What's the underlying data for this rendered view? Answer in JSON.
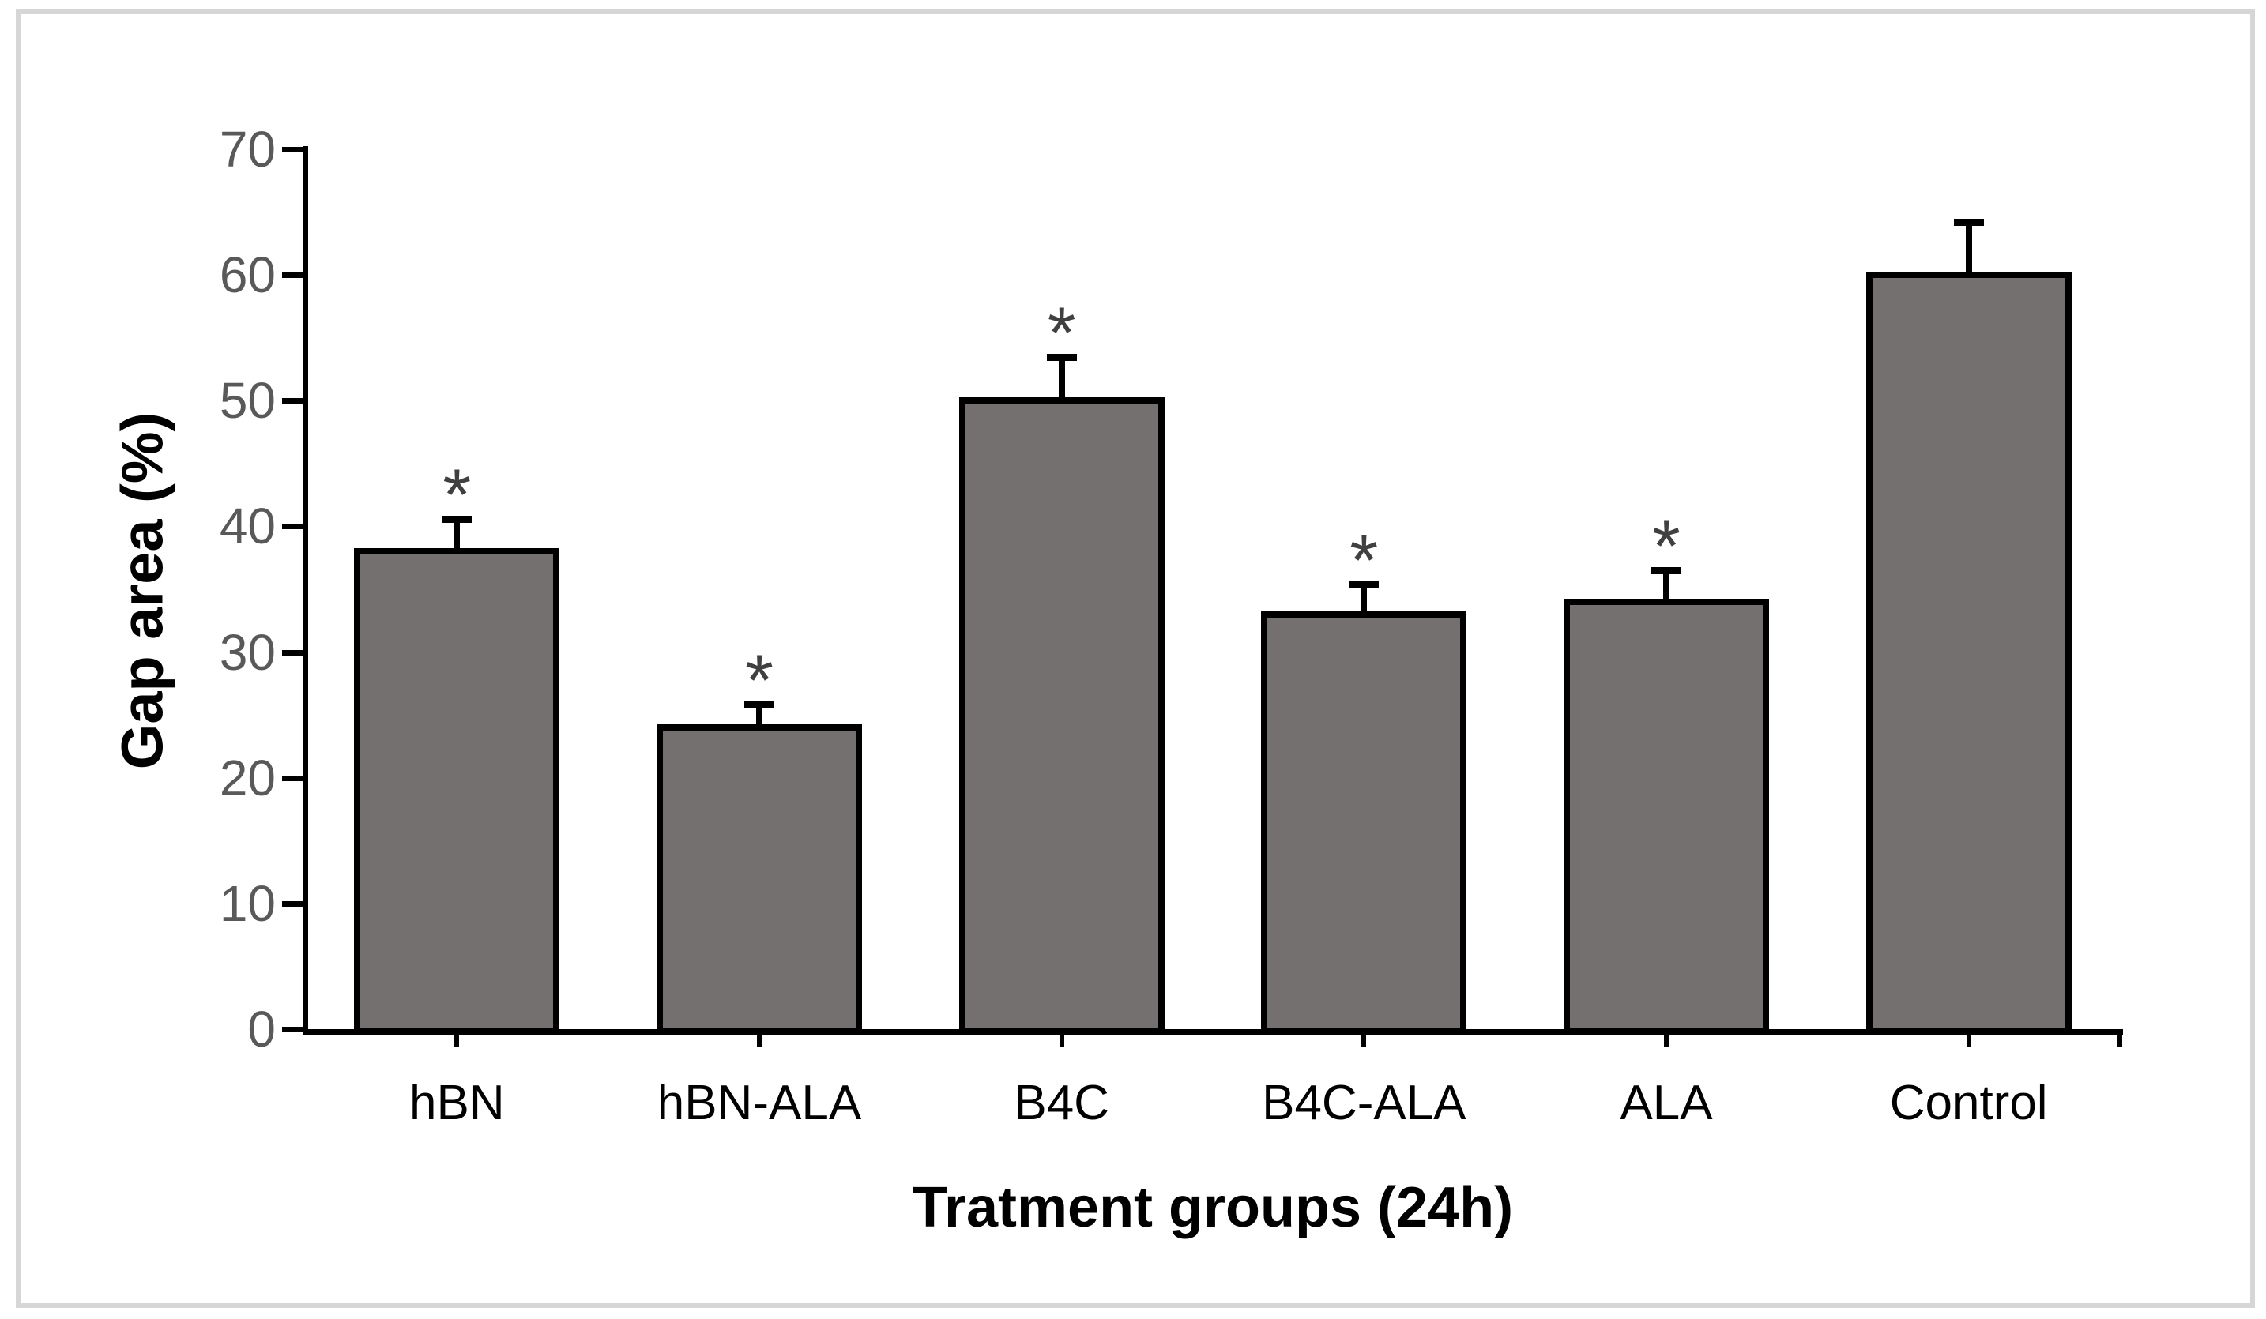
{
  "page": {
    "background": "#ffffff",
    "frame_color": "#d6d6d6"
  },
  "chart_data": {
    "type": "bar",
    "title": "",
    "categories": [
      "hBN",
      "hBN-ALA",
      "B4C",
      "B4C-ALA",
      "ALA",
      "Control"
    ],
    "values": [
      38,
      24,
      50,
      33,
      34,
      60
    ],
    "error_plus": [
      2.6,
      1.8,
      3.5,
      2.4,
      2.5,
      4.2
    ],
    "significance": [
      "*",
      "*",
      "*",
      "*",
      "*",
      ""
    ],
    "xlabel": "Tratment groups (24h)",
    "ylabel": "Gap area (%)",
    "ylim": [
      0,
      70
    ],
    "yticks": [
      0,
      10,
      20,
      30,
      40,
      50,
      60,
      70
    ],
    "grid": false,
    "legend": "none",
    "colors": {
      "bar_fill": "#757070",
      "bar_border": "#000000",
      "axis": "#000000",
      "y_tick_label": "#595959",
      "category_label": "#000000",
      "axis_title": "#000000",
      "significance": "#404040"
    }
  }
}
